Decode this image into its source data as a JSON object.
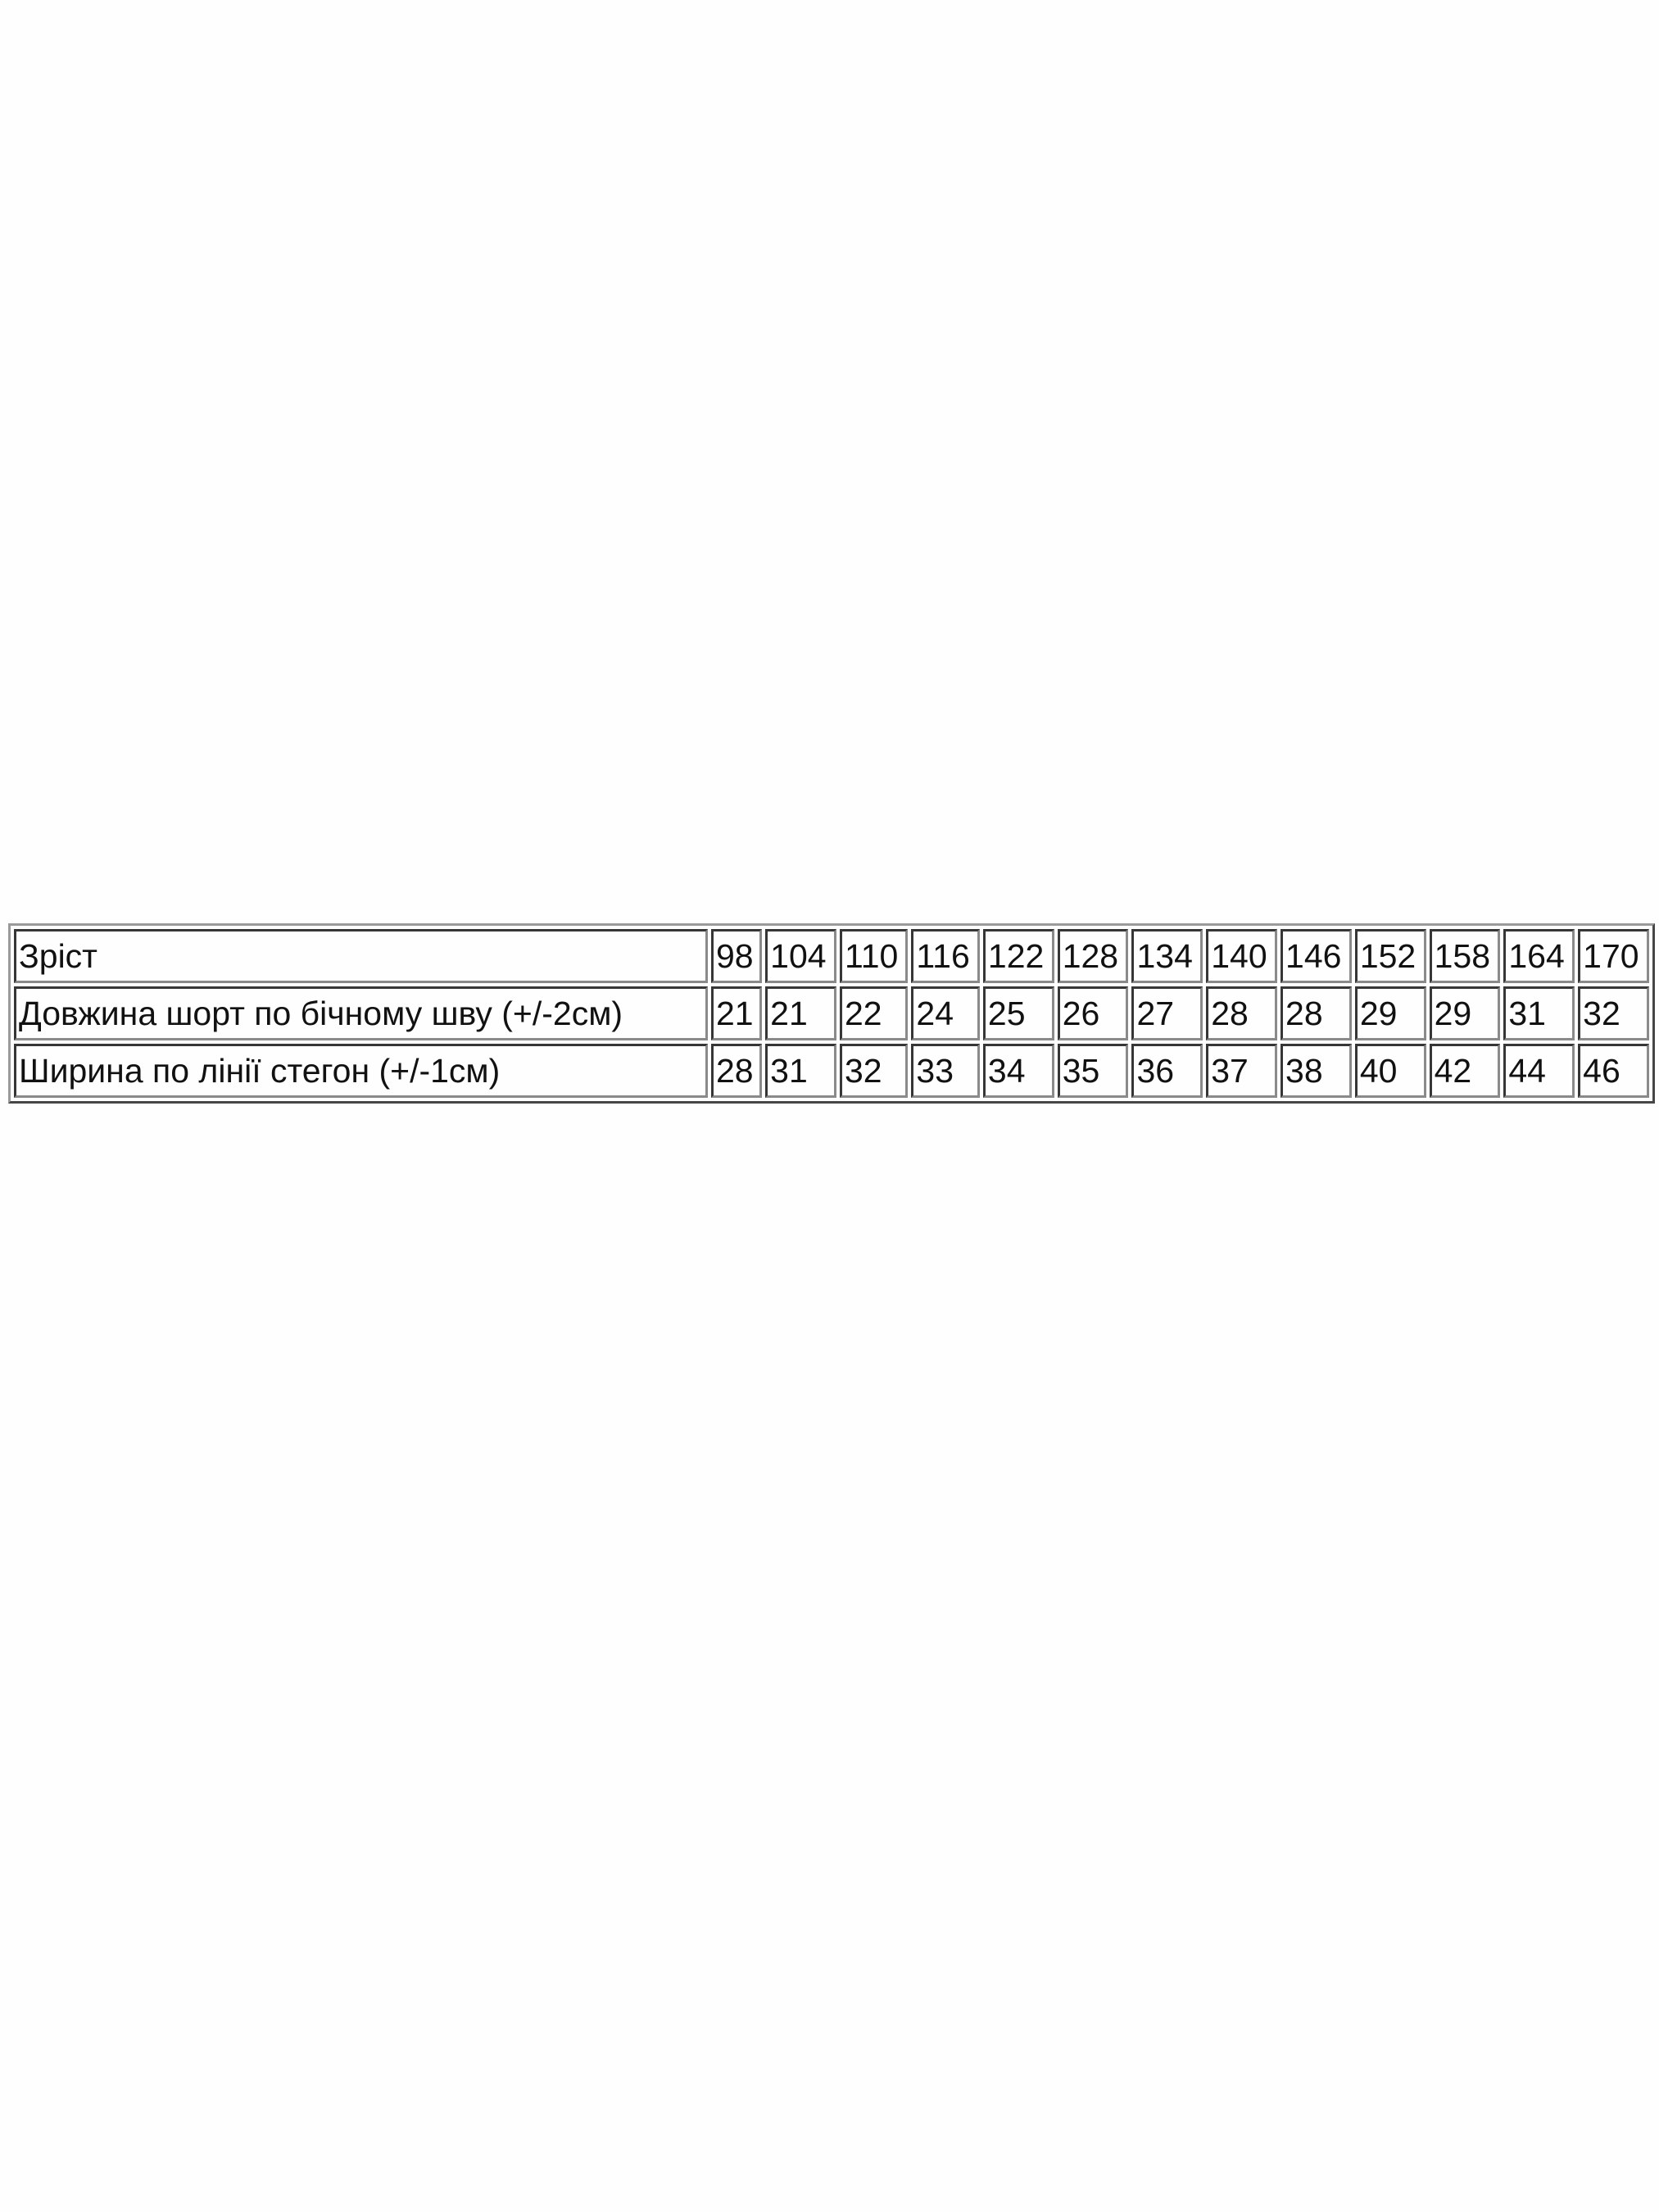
{
  "size_table": {
    "rows": [
      {
        "label": "Зріст",
        "values": [
          "98",
          "104",
          "110",
          "116",
          "122",
          "128",
          "134",
          "140",
          "146",
          "152",
          "158",
          "164",
          "170"
        ]
      },
      {
        "label": "Довжина шорт по бічному шву (+/-2см)",
        "values": [
          "21",
          "21",
          "22",
          "24",
          "25",
          "26",
          "27",
          "28",
          "28",
          "29",
          "29",
          "31",
          "32"
        ]
      },
      {
        "label": "Ширина по лінії стегон (+/-1см)",
        "values": [
          "28",
          "31",
          "32",
          "33",
          "34",
          "35",
          "36",
          "37",
          "38",
          "40",
          "42",
          "44",
          "46"
        ]
      }
    ]
  }
}
